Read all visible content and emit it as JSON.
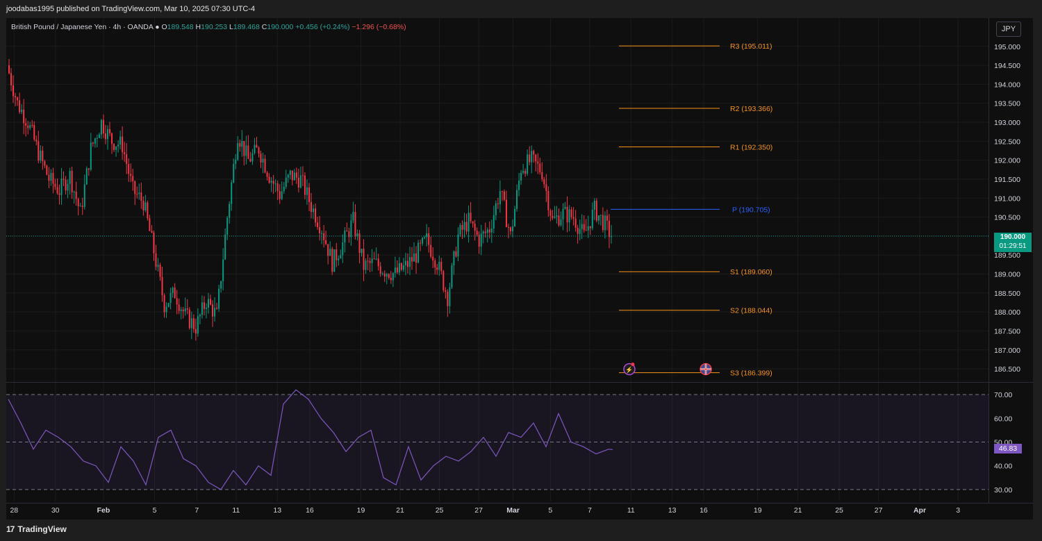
{
  "header": {
    "published": "joodabas1995 published on TradingView.com, Mar 10, 2025 07:30 UTC-4"
  },
  "legend": {
    "symbol": "British Pound / Japanese Yen · 4h · OANDA",
    "o_label": "O",
    "o": "189.548",
    "h_label": "H",
    "h": "190.253",
    "l_label": "L",
    "l": "189.468",
    "c_label": "C",
    "c": "190.000",
    "change": "+0.456 (+0.24%)",
    "day_change": "−1.296 (−0.68%)"
  },
  "currency_button": "JPY",
  "last_price": {
    "price": "190.000",
    "countdown": "01:29:51"
  },
  "rsi_value": "46.83",
  "footer": {
    "brand": "TradingView"
  },
  "colors": {
    "up": "#089981",
    "down": "#f23645",
    "pivot": "#2962ff",
    "support_resistance": "#f7931a",
    "rsi": "#7e57c2",
    "background": "#0f0f0f"
  },
  "icons": [
    "lightning-event-icon",
    "uk-flag-icon",
    "tradingview-logo-icon"
  ],
  "chart_data": [
    {
      "type": "candlestick",
      "title": "",
      "ylim": [
        186.3,
        195.6
      ],
      "y_ticks": [
        "195.000",
        "194.500",
        "194.000",
        "193.500",
        "193.000",
        "192.500",
        "192.000",
        "191.500",
        "191.000",
        "190.500",
        "190.000",
        "189.500",
        "189.000",
        "188.500",
        "188.000",
        "187.500",
        "187.000",
        "186.500"
      ],
      "x_ticks": [
        "28",
        "30",
        "Feb",
        "5",
        "7",
        "11",
        "13",
        "16",
        "19",
        "21",
        "25",
        "27",
        "Mar",
        "5",
        "7",
        "11",
        "13",
        "16",
        "19",
        "21",
        "25",
        "27",
        "Apr",
        "3"
      ],
      "x_positions": [
        0.8,
        5.0,
        9.9,
        15.1,
        19.4,
        23.4,
        27.6,
        30.9,
        36.1,
        40.1,
        44.1,
        48.1,
        51.6,
        55.4,
        59.4,
        63.6,
        67.8,
        71.0,
        76.5,
        80.6,
        84.8,
        88.8,
        93.0,
        96.9
      ],
      "series_points": [
        [
          0,
          194.5
        ],
        [
          5,
          193.5
        ],
        [
          10,
          193.0
        ],
        [
          15,
          192.2
        ],
        [
          20,
          191.5
        ],
        [
          25,
          191.2
        ],
        [
          30,
          191.6
        ],
        [
          35,
          190.6
        ],
        [
          40,
          192.3
        ],
        [
          45,
          193.0
        ],
        [
          50,
          192.5
        ],
        [
          55,
          192.4
        ],
        [
          60,
          191.2
        ],
        [
          65,
          190.9
        ],
        [
          70,
          189.6
        ],
        [
          75,
          188.2
        ],
        [
          80,
          188.5
        ],
        [
          85,
          187.9
        ],
        [
          90,
          187.6
        ],
        [
          95,
          188.3
        ],
        [
          100,
          187.9
        ],
        [
          105,
          190.5
        ],
        [
          110,
          192.7
        ],
        [
          115,
          192.0
        ],
        [
          120,
          192.3
        ],
        [
          125,
          191.6
        ],
        [
          130,
          191.1
        ],
        [
          135,
          191.6
        ],
        [
          140,
          191.5
        ],
        [
          145,
          190.8
        ],
        [
          150,
          190.2
        ],
        [
          155,
          189.3
        ],
        [
          160,
          189.8
        ],
        [
          165,
          190.4
        ],
        [
          170,
          189.2
        ],
        [
          175,
          189.3
        ],
        [
          180,
          189.1
        ],
        [
          185,
          189.0
        ],
        [
          190,
          189.2
        ],
        [
          195,
          189.5
        ],
        [
          200,
          189.9
        ],
        [
          205,
          189.3
        ],
        [
          210,
          188.4
        ],
        [
          215,
          190.0
        ],
        [
          220,
          190.4
        ],
        [
          225,
          189.9
        ],
        [
          230,
          190.2
        ],
        [
          235,
          191.2
        ],
        [
          240,
          190.0
        ],
        [
          245,
          191.8
        ],
        [
          250,
          192.0
        ],
        [
          255,
          191.7
        ],
        [
          260,
          190.4
        ],
        [
          265,
          190.6
        ],
        [
          270,
          190.5
        ],
        [
          275,
          190.0
        ],
        [
          280,
          190.7
        ],
        [
          285,
          190.3
        ],
        [
          288,
          190.0
        ]
      ],
      "candles_total": 288,
      "last_close": 190.0
    },
    {
      "type": "hlines",
      "lines": [
        {
          "label": "R3 (195.011)",
          "value": 195.011
        },
        {
          "label": "R2 (193.366)",
          "value": 193.366
        },
        {
          "label": "R1 (192.350)",
          "value": 192.35
        },
        {
          "label": "P (190.705)",
          "value": 190.705
        },
        {
          "label": "S1 (189.060)",
          "value": 189.06
        },
        {
          "label": "S2 (188.044)",
          "value": 188.044
        },
        {
          "label": "S3 (186.399)",
          "value": 186.399
        }
      ]
    },
    {
      "type": "line",
      "name": "",
      "ylim": [
        25,
        75
      ],
      "y_ticks": [
        "70.00",
        "60.00",
        "50.00",
        "40.00",
        "30.00"
      ],
      "bands": [
        70,
        50,
        30
      ],
      "points": [
        [
          0,
          68
        ],
        [
          3,
          58
        ],
        [
          6,
          47
        ],
        [
          9,
          55
        ],
        [
          12,
          52
        ],
        [
          15,
          48
        ],
        [
          18,
          42
        ],
        [
          21,
          40
        ],
        [
          24,
          33
        ],
        [
          27,
          48
        ],
        [
          30,
          42
        ],
        [
          33,
          32
        ],
        [
          36,
          52
        ],
        [
          39,
          55
        ],
        [
          42,
          43
        ],
        [
          45,
          40
        ],
        [
          48,
          33
        ],
        [
          51,
          30
        ],
        [
          54,
          38
        ],
        [
          57,
          32
        ],
        [
          60,
          40
        ],
        [
          63,
          36
        ],
        [
          66,
          66
        ],
        [
          69,
          72
        ],
        [
          72,
          68
        ],
        [
          75,
          60
        ],
        [
          78,
          54
        ],
        [
          81,
          46
        ],
        [
          84,
          52
        ],
        [
          87,
          55
        ],
        [
          90,
          35
        ],
        [
          93,
          32
        ],
        [
          96,
          48
        ],
        [
          99,
          34
        ],
        [
          102,
          40
        ],
        [
          105,
          44
        ],
        [
          108,
          42
        ],
        [
          111,
          46
        ],
        [
          114,
          52
        ],
        [
          117,
          44
        ],
        [
          120,
          54
        ],
        [
          123,
          52
        ],
        [
          126,
          58
        ],
        [
          129,
          48
        ],
        [
          132,
          62
        ],
        [
          135,
          50
        ],
        [
          138,
          48
        ],
        [
          141,
          45
        ],
        [
          144,
          47
        ],
        [
          145,
          46.83
        ]
      ],
      "n": 145
    }
  ]
}
